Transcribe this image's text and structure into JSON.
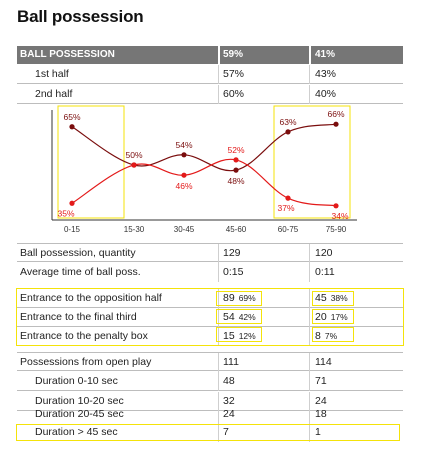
{
  "title": "Ball possession",
  "header": {
    "label": "BALL POSSESSION",
    "v1": "59%",
    "v2": "41%"
  },
  "halves": [
    {
      "label": "1st half",
      "v1": "57%",
      "v2": "43%"
    },
    {
      "label": "2nd half",
      "v1": "60%",
      "v2": "40%"
    }
  ],
  "chart_data": {
    "type": "line",
    "categories": [
      "0-15",
      "15-30",
      "30-45",
      "45-60",
      "60-75",
      "75-90"
    ],
    "series": [
      {
        "values": [
          65,
          50,
          54,
          48,
          63,
          66
        ],
        "labels": [
          "65%",
          "50%",
          "54%",
          "48%",
          "63%",
          "66%"
        ],
        "color": "#7a0d0d"
      },
      {
        "values": [
          35,
          50,
          46,
          52,
          37,
          34
        ],
        "labels": [
          "35%",
          "",
          "46%",
          "52%",
          "37%",
          "34%"
        ],
        "color": "#e31a1a"
      }
    ],
    "ylim": [
      30,
      70
    ],
    "highlight_color": "#f4e30a"
  },
  "stats": [
    {
      "label": "Ball possession, quantity",
      "v1": "129",
      "v2": "120"
    },
    {
      "label": "Average time of ball poss.",
      "v1": "0:15",
      "v2": "0:11"
    }
  ],
  "entrances": [
    {
      "label": "Entrance to the opposition half",
      "v1": "89",
      "p1": "69%",
      "v2": "45",
      "p2": "38%"
    },
    {
      "label": "Entrance to the final third",
      "v1": "54",
      "p1": "42%",
      "v2": "20",
      "p2": "17%"
    },
    {
      "label": "Entrance to the penalty box",
      "v1": "15",
      "p1": "12%",
      "v2": "8",
      "p2": "7%"
    }
  ],
  "open_play": {
    "label": "Possessions from open play",
    "v1": "111",
    "v2": "114",
    "durations": [
      {
        "label": "Duration  0-10 sec",
        "v1": "48",
        "v2": "71"
      },
      {
        "label": "Duration  10-20 sec",
        "v1": "32",
        "v2": "24"
      },
      {
        "label": "Duration  20-45 sec",
        "v1": "24",
        "v2": "18"
      },
      {
        "label": "Duration  > 45 sec",
        "v1": "7",
        "v2": "1"
      }
    ]
  }
}
